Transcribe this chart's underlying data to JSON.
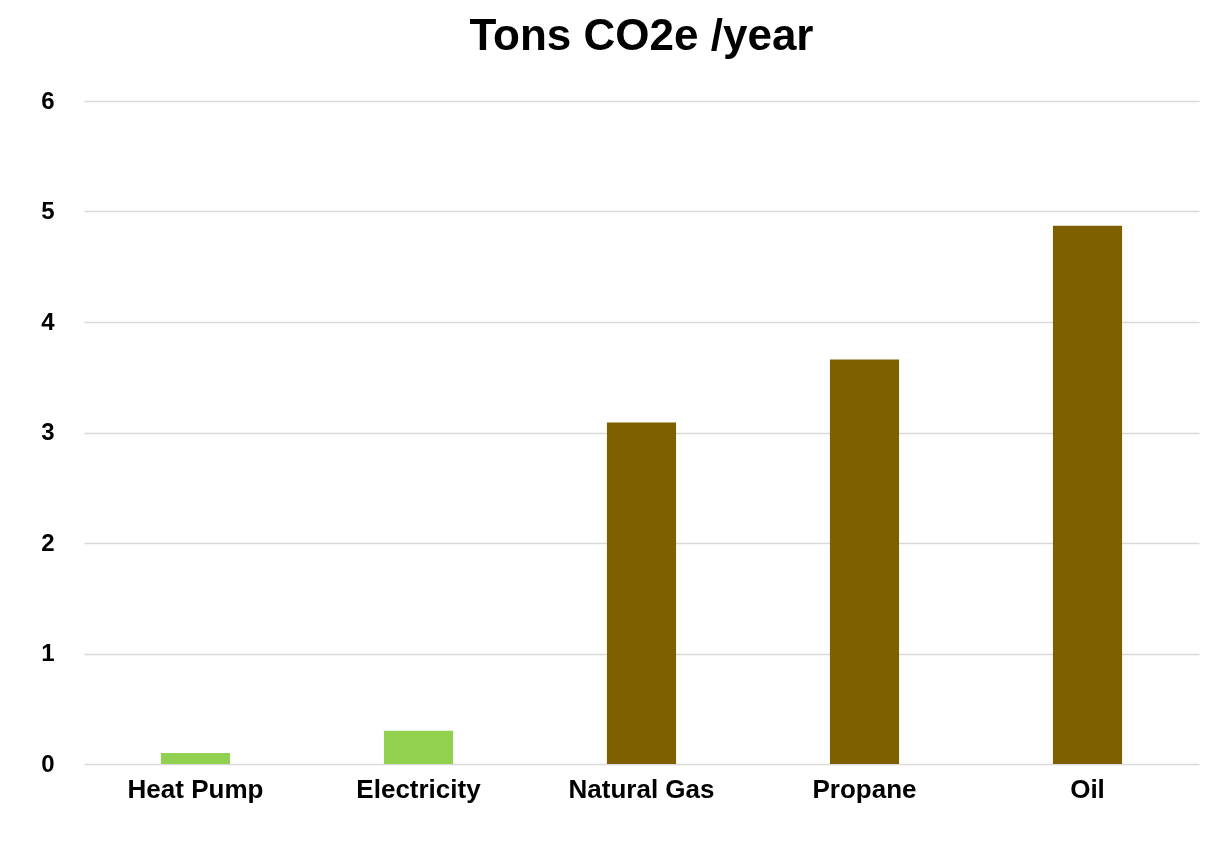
{
  "chart_data": {
    "type": "bar",
    "title": "Tons CO2e /year",
    "categories": [
      "Heat Pump",
      "Electricity",
      "Natural Gas",
      "Propane",
      "Oil"
    ],
    "values": [
      0.1,
      0.3,
      3.09,
      3.66,
      4.87
    ],
    "colors": [
      "#92d050",
      "#92d050",
      "#7f6000",
      "#7f6000",
      "#7f6000"
    ],
    "ylim": [
      0,
      6
    ],
    "yticks": [
      0,
      1,
      2,
      3,
      4,
      5,
      6
    ],
    "grid": "y"
  }
}
